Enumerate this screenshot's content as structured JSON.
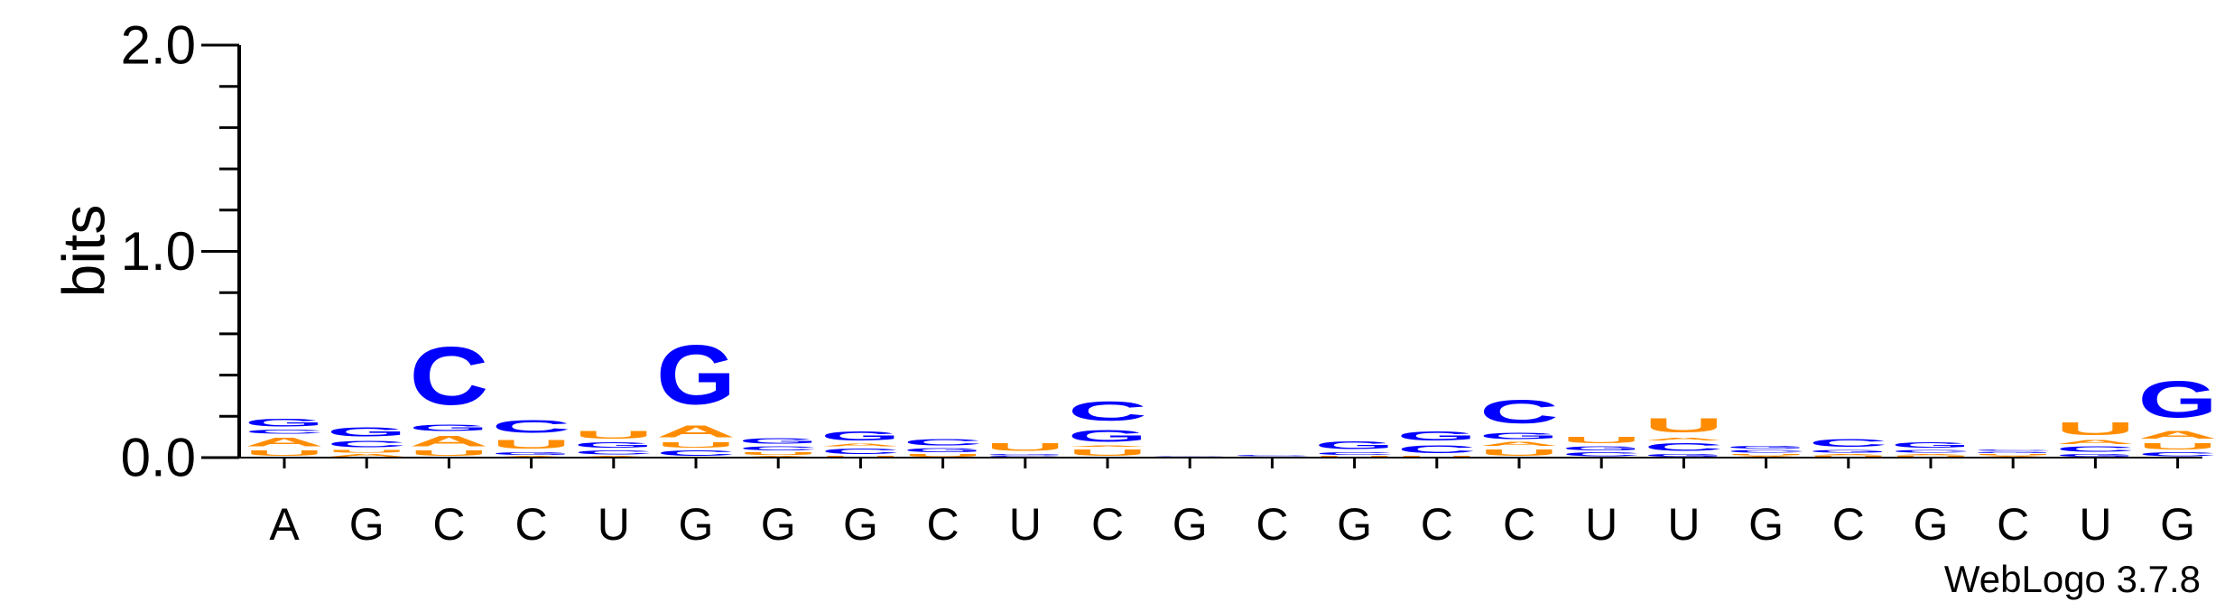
{
  "chart_data": {
    "type": "sequence-logo",
    "ylabel": "bits",
    "ylim": [
      0,
      2.0
    ],
    "y_ticks": [
      "0.0",
      "1.0",
      "2.0"
    ],
    "x_labels": [
      "A",
      "G",
      "C",
      "C",
      "U",
      "G",
      "G",
      "G",
      "C",
      "U",
      "C",
      "G",
      "C",
      "G",
      "C",
      "C",
      "U",
      "U",
      "G",
      "C",
      "G",
      "C",
      "U",
      "G"
    ],
    "footer": "WebLogo 3.7.8",
    "colors": {
      "A": "#ff8c00",
      "U": "#ff8c00",
      "G": "#0000ff",
      "C": "#0000ff"
    },
    "stacks": [
      [
        {
          "l": "U",
          "v": 0.04
        },
        {
          "l": "A",
          "v": 0.07
        },
        {
          "l": "C",
          "v": 0.03
        },
        {
          "l": "G",
          "v": 0.06
        }
      ],
      [
        {
          "l": "A",
          "v": 0.02
        },
        {
          "l": "U",
          "v": 0.02
        },
        {
          "l": "C",
          "v": 0.05
        },
        {
          "l": "G",
          "v": 0.07
        }
      ],
      [
        {
          "l": "U",
          "v": 0.04
        },
        {
          "l": "A",
          "v": 0.08
        },
        {
          "l": "G",
          "v": 0.05
        },
        {
          "l": "C",
          "v": 0.45
        }
      ],
      [
        {
          "l": "A",
          "v": 0.01
        },
        {
          "l": "G",
          "v": 0.02
        },
        {
          "l": "U",
          "v": 0.07
        },
        {
          "l": "C",
          "v": 0.1
        }
      ],
      [
        {
          "l": "A",
          "v": 0.01
        },
        {
          "l": "C",
          "v": 0.03
        },
        {
          "l": "G",
          "v": 0.04
        },
        {
          "l": "U",
          "v": 0.06
        }
      ],
      [
        {
          "l": "C",
          "v": 0.04
        },
        {
          "l": "U",
          "v": 0.04
        },
        {
          "l": "A",
          "v": 0.09
        },
        {
          "l": "G",
          "v": 0.46
        }
      ],
      [
        {
          "l": "A",
          "v": 0.01
        },
        {
          "l": "U",
          "v": 0.02
        },
        {
          "l": "C",
          "v": 0.03
        },
        {
          "l": "G",
          "v": 0.04
        }
      ],
      [
        {
          "l": "U",
          "v": 0.01
        },
        {
          "l": "C",
          "v": 0.04
        },
        {
          "l": "A",
          "v": 0.02
        },
        {
          "l": "G",
          "v": 0.07
        }
      ],
      [
        {
          "l": "U",
          "v": 0.02
        },
        {
          "l": "G",
          "v": 0.03
        },
        {
          "l": "C",
          "v": 0.05
        }
      ],
      [
        {
          "l": "C",
          "v": 0.01
        },
        {
          "l": "G",
          "v": 0.01
        },
        {
          "l": "U",
          "v": 0.06
        }
      ],
      [
        {
          "l": "U",
          "v": 0.05
        },
        {
          "l": "A",
          "v": 0.01
        },
        {
          "l": "G",
          "v": 0.09
        },
        {
          "l": "C",
          "v": 0.15
        }
      ],
      [
        {
          "l": "C",
          "v": 0.005
        },
        {
          "l": "G",
          "v": 0.005
        }
      ],
      [
        {
          "l": "G",
          "v": 0.005
        },
        {
          "l": "C",
          "v": 0.01
        }
      ],
      [
        {
          "l": "U",
          "v": 0.01
        },
        {
          "l": "C",
          "v": 0.02
        },
        {
          "l": "G",
          "v": 0.06
        }
      ],
      [
        {
          "l": "U",
          "v": 0.01
        },
        {
          "l": "C",
          "v": 0.06
        },
        {
          "l": "G",
          "v": 0.07
        }
      ],
      [
        {
          "l": "U",
          "v": 0.05
        },
        {
          "l": "A",
          "v": 0.03
        },
        {
          "l": "G",
          "v": 0.05
        },
        {
          "l": "C",
          "v": 0.18
        }
      ],
      [
        {
          "l": "C",
          "v": 0.03
        },
        {
          "l": "G",
          "v": 0.03
        },
        {
          "l": "U",
          "v": 0.05
        }
      ],
      [
        {
          "l": "G",
          "v": 0.02
        },
        {
          "l": "C",
          "v": 0.06
        },
        {
          "l": "A",
          "v": 0.02
        },
        {
          "l": "U",
          "v": 0.11
        }
      ],
      [
        {
          "l": "A",
          "v": 0.01
        },
        {
          "l": "U",
          "v": 0.01
        },
        {
          "l": "C",
          "v": 0.02
        },
        {
          "l": "G",
          "v": 0.02
        }
      ],
      [
        {
          "l": "U",
          "v": 0.01
        },
        {
          "l": "A",
          "v": 0.01
        },
        {
          "l": "G",
          "v": 0.02
        },
        {
          "l": "C",
          "v": 0.06
        }
      ],
      [
        {
          "l": "U",
          "v": 0.01
        },
        {
          "l": "A",
          "v": 0.01
        },
        {
          "l": "C",
          "v": 0.02
        },
        {
          "l": "G",
          "v": 0.04
        }
      ],
      [
        {
          "l": "A",
          "v": 0.01
        },
        {
          "l": "U",
          "v": 0.01
        },
        {
          "l": "G",
          "v": 0.01
        },
        {
          "l": "C",
          "v": 0.01
        }
      ],
      [
        {
          "l": "G",
          "v": 0.02
        },
        {
          "l": "C",
          "v": 0.04
        },
        {
          "l": "A",
          "v": 0.03
        },
        {
          "l": "U",
          "v": 0.1
        }
      ],
      [
        {
          "l": "C",
          "v": 0.03
        },
        {
          "l": "U",
          "v": 0.05
        },
        {
          "l": "A",
          "v": 0.06
        },
        {
          "l": "G",
          "v": 0.28
        }
      ]
    ]
  }
}
